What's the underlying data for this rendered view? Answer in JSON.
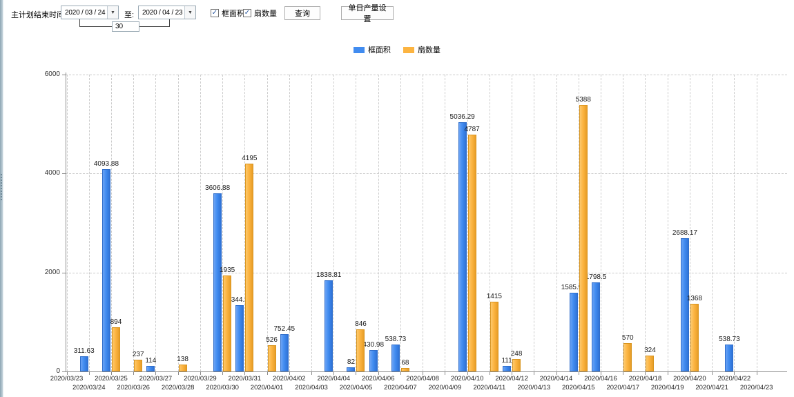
{
  "toolbar": {
    "plan_end_label": "主计划结束时间:",
    "date_from": "2020 / 03 / 24",
    "to_label": "至:",
    "date_to": "2020 / 04 / 23",
    "interval_days": "30",
    "checkbox_frame_area": "框面积",
    "checkbox_fan_count": "扇数量",
    "query_button": "查询",
    "daily_output_button": "单日产量设置",
    "dropdown_icon": "▼"
  },
  "legend": {
    "frame_area": "框面积",
    "fan_count": "扇数量"
  },
  "colors": {
    "frame_area": "#418CF0",
    "fan_count": "#FCB441"
  },
  "chart_data": {
    "type": "bar",
    "title": "",
    "xlabel": "",
    "ylabel": "",
    "ylim": [
      0,
      6000
    ],
    "yticks": [
      "0",
      "2000",
      "4000",
      "6000"
    ],
    "grid": true,
    "legend_position": "top",
    "categories": [
      "2020/03/23",
      "2020/03/24",
      "2020/03/25",
      "2020/03/26",
      "2020/03/27",
      "2020/03/28",
      "2020/03/29",
      "2020/03/30",
      "2020/03/31",
      "2020/04/01",
      "2020/04/02",
      "2020/04/03",
      "2020/04/04",
      "2020/04/05",
      "2020/04/06",
      "2020/04/07",
      "2020/04/08",
      "2020/04/09",
      "2020/04/10",
      "2020/04/11",
      "2020/04/12",
      "2020/04/13",
      "2020/04/14",
      "2020/04/15",
      "2020/04/16",
      "2020/04/17",
      "2020/04/18",
      "2020/04/19",
      "2020/04/20",
      "2020/04/21",
      "2020/04/22",
      "2020/04/23"
    ],
    "series": [
      {
        "name": "框面积",
        "color": "#418CF0",
        "values": [
          null,
          "311.63",
          "4093.88",
          null,
          "114",
          null,
          null,
          "3606.88",
          "1344.95",
          null,
          "752.45",
          null,
          "1838.81",
          "82",
          "430.98",
          "538.73",
          null,
          null,
          "5036.29",
          null,
          "111",
          null,
          null,
          "1585.96",
          "1798.5",
          null,
          null,
          null,
          "2688.17",
          null,
          "538.73",
          null
        ]
      },
      {
        "name": "扇数量",
        "color": "#FCB441",
        "values": [
          null,
          null,
          "894",
          "237",
          null,
          "138",
          null,
          "1935",
          "4195",
          "526",
          null,
          null,
          null,
          "846",
          null,
          "68",
          null,
          null,
          "4787",
          "1415",
          "248",
          null,
          null,
          "5388",
          null,
          "570",
          "324",
          null,
          "1368",
          null,
          null,
          null
        ]
      }
    ]
  }
}
